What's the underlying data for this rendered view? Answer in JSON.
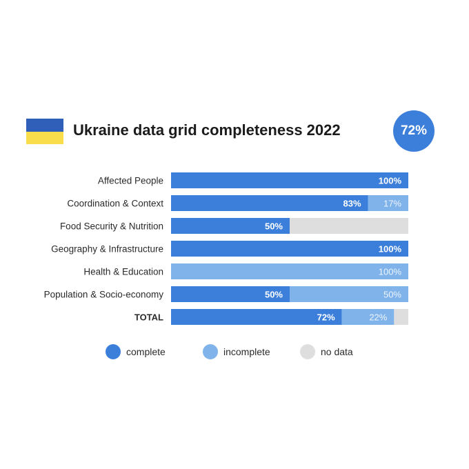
{
  "header": {
    "title": "Ukraine data grid completeness 2022",
    "badge": "72%"
  },
  "colors": {
    "complete": "#3c7fdb",
    "incomplete": "#7fb3ea",
    "no_data": "#dedede",
    "flag_blue": "#2f5fb8",
    "flag_yellow": "#f9dd4a"
  },
  "legend": [
    {
      "key": "complete",
      "label": "complete"
    },
    {
      "key": "incomplete",
      "label": "incomplete"
    },
    {
      "key": "no_data",
      "label": "no data"
    }
  ],
  "chart_data": {
    "type": "bar",
    "orientation": "horizontal",
    "stacked": true,
    "xlim": [
      0,
      100
    ],
    "categories": [
      "Affected People",
      "Coordination & Context",
      "Food Security & Nutrition",
      "Geography & Infrastructure",
      "Health & Education",
      "Population & Socio-economy",
      "TOTAL"
    ],
    "series": [
      {
        "name": "complete",
        "values": [
          100,
          83,
          50,
          100,
          0,
          50,
          72
        ],
        "labels": [
          "100%",
          "83%",
          "50%",
          "100%",
          "",
          "50%",
          "72%"
        ]
      },
      {
        "name": "incomplete",
        "values": [
          0,
          17,
          0,
          0,
          100,
          50,
          22
        ],
        "labels": [
          "",
          "17%",
          "",
          "",
          "100%",
          "50%",
          "22%"
        ]
      },
      {
        "name": "no data",
        "values": [
          0,
          0,
          50,
          0,
          0,
          0,
          6
        ],
        "labels": [
          "",
          "",
          "",
          "",
          "",
          "",
          ""
        ]
      }
    ]
  }
}
